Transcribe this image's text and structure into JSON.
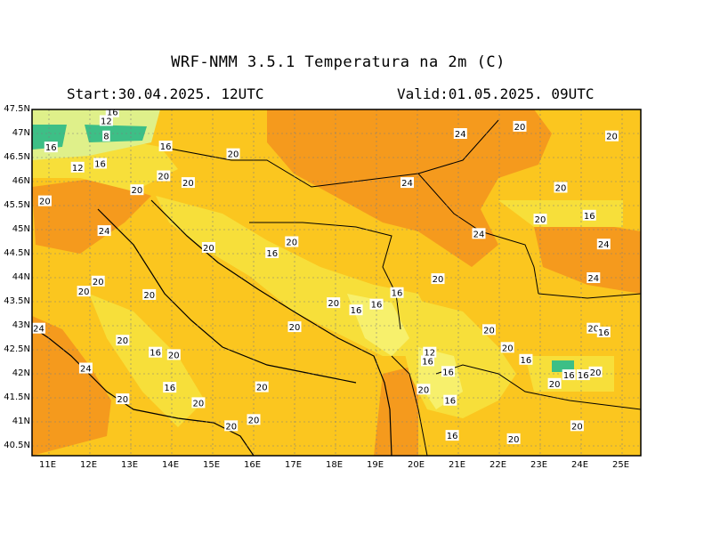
{
  "header": {
    "title": "WRF-NMM 3.5.1   Temperatura na 2m (C)",
    "start": "Start:30.04.2025.  12UTC",
    "valid": "Valid:01.05.2025.  09UTC"
  },
  "axes": {
    "lat_labels": [
      "47.5N",
      "47N",
      "46.5N",
      "46N",
      "45.5N",
      "45N",
      "44.5N",
      "44N",
      "43.5N",
      "43N",
      "42.5N",
      "42N",
      "41.5N",
      "41N",
      "40.5N"
    ],
    "lon_labels": [
      "11E",
      "12E",
      "13E",
      "14E",
      "15E",
      "16E",
      "17E",
      "18E",
      "19E",
      "20E",
      "21E",
      "22E",
      "23E",
      "24E",
      "25E"
    ]
  },
  "colors": {
    "t24": "#f59a1d",
    "t22": "#fbb21d",
    "t20": "#fbc61f",
    "t18": "#f7df3a",
    "t16": "#f7f06c",
    "t14": "#dff08a",
    "t12": "#b7e09a",
    "t10": "#3dbf86",
    "t8": "#1aa06a",
    "grid": "#7f7f7f",
    "border": "#000000"
  },
  "contour_labels": [
    {
      "text": "16",
      "lon": 12.55,
      "lat": 47.45
    },
    {
      "text": "12",
      "lon": 12.4,
      "lat": 47.27
    },
    {
      "text": "8",
      "lon": 12.4,
      "lat": 46.95
    },
    {
      "text": "16",
      "lon": 11.05,
      "lat": 46.72
    },
    {
      "text": "12",
      "lon": 11.7,
      "lat": 46.3
    },
    {
      "text": "16",
      "lon": 12.25,
      "lat": 46.38
    },
    {
      "text": "16",
      "lon": 13.85,
      "lat": 46.74
    },
    {
      "text": "20",
      "lon": 15.5,
      "lat": 46.58
    },
    {
      "text": "20",
      "lon": 13.8,
      "lat": 46.12
    },
    {
      "text": "20",
      "lon": 14.4,
      "lat": 45.98
    },
    {
      "text": "20",
      "lon": 13.15,
      "lat": 45.83
    },
    {
      "text": "20",
      "lon": 10.9,
      "lat": 45.6
    },
    {
      "text": "24",
      "lon": 12.35,
      "lat": 44.98
    },
    {
      "text": "20",
      "lon": 14.9,
      "lat": 44.63
    },
    {
      "text": "20",
      "lon": 16.93,
      "lat": 44.75
    },
    {
      "text": "16",
      "lon": 16.45,
      "lat": 44.52
    },
    {
      "text": "20",
      "lon": 12.2,
      "lat": 43.93
    },
    {
      "text": "20",
      "lon": 11.85,
      "lat": 43.72
    },
    {
      "text": "20",
      "lon": 13.45,
      "lat": 43.65
    },
    {
      "text": "20",
      "lon": 17.95,
      "lat": 43.48
    },
    {
      "text": "16",
      "lon": 19.5,
      "lat": 43.69
    },
    {
      "text": "16",
      "lon": 19.0,
      "lat": 43.45
    },
    {
      "text": "16",
      "lon": 18.5,
      "lat": 43.33
    },
    {
      "text": "20",
      "lon": 17.0,
      "lat": 42.98
    },
    {
      "text": "24",
      "lon": 10.75,
      "lat": 42.95
    },
    {
      "text": "20",
      "lon": 12.8,
      "lat": 42.7
    },
    {
      "text": "16",
      "lon": 13.6,
      "lat": 42.45
    },
    {
      "text": "20",
      "lon": 14.05,
      "lat": 42.4
    },
    {
      "text": "24",
      "lon": 11.9,
      "lat": 42.12
    },
    {
      "text": "16",
      "lon": 13.95,
      "lat": 41.72
    },
    {
      "text": "20",
      "lon": 16.2,
      "lat": 41.73
    },
    {
      "text": "20",
      "lon": 12.8,
      "lat": 41.48
    },
    {
      "text": "20",
      "lon": 14.65,
      "lat": 41.4
    },
    {
      "text": "20",
      "lon": 16.0,
      "lat": 41.05
    },
    {
      "text": "20",
      "lon": 15.45,
      "lat": 40.92
    },
    {
      "text": "24",
      "lon": 21.05,
      "lat": 47.0
    },
    {
      "text": "20",
      "lon": 22.5,
      "lat": 47.15
    },
    {
      "text": "20",
      "lon": 24.75,
      "lat": 46.95
    },
    {
      "text": "24",
      "lon": 19.75,
      "lat": 45.98
    },
    {
      "text": "20",
      "lon": 23.5,
      "lat": 45.88
    },
    {
      "text": "16",
      "lon": 24.2,
      "lat": 45.3
    },
    {
      "text": "20",
      "lon": 23.0,
      "lat": 45.22
    },
    {
      "text": "24",
      "lon": 21.5,
      "lat": 44.92
    },
    {
      "text": "24",
      "lon": 24.55,
      "lat": 44.7
    },
    {
      "text": "24",
      "lon": 24.3,
      "lat": 44.0
    },
    {
      "text": "20",
      "lon": 20.5,
      "lat": 43.98
    },
    {
      "text": "20",
      "lon": 21.75,
      "lat": 42.92
    },
    {
      "text": "20",
      "lon": 24.3,
      "lat": 42.95
    },
    {
      "text": "16",
      "lon": 24.55,
      "lat": 42.87
    },
    {
      "text": "20",
      "lon": 22.2,
      "lat": 42.55
    },
    {
      "text": "16",
      "lon": 22.65,
      "lat": 42.3
    },
    {
      "text": "12",
      "lon": 20.3,
      "lat": 42.45
    },
    {
      "text": "16",
      "lon": 20.25,
      "lat": 42.27
    },
    {
      "text": "16",
      "lon": 20.75,
      "lat": 42.05
    },
    {
      "text": "20",
      "lon": 20.15,
      "lat": 41.68
    },
    {
      "text": "16",
      "lon": 20.8,
      "lat": 41.45
    },
    {
      "text": "16",
      "lon": 23.7,
      "lat": 41.98
    },
    {
      "text": "16",
      "lon": 24.05,
      "lat": 41.98
    },
    {
      "text": "20",
      "lon": 24.35,
      "lat": 42.04
    },
    {
      "text": "20",
      "lon": 23.35,
      "lat": 41.8
    },
    {
      "text": "16",
      "lon": 20.85,
      "lat": 40.72
    },
    {
      "text": "20",
      "lon": 22.35,
      "lat": 40.65
    },
    {
      "text": "20",
      "lon": 23.9,
      "lat": 40.92
    }
  ]
}
